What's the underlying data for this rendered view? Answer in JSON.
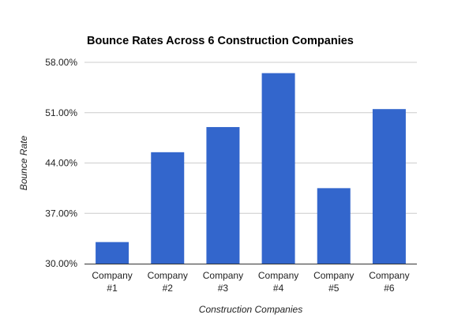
{
  "chart_data": {
    "type": "bar",
    "title": "Bounce Rates Across 6 Construction Companies",
    "xlabel": "Construction Companies",
    "ylabel": "Bounce Rate",
    "categories": [
      [
        "Company",
        "#1"
      ],
      [
        "Company",
        "#2"
      ],
      [
        "Company",
        "#3"
      ],
      [
        "Company",
        "#4"
      ],
      [
        "Company",
        "#5"
      ],
      [
        "Company",
        "#6"
      ]
    ],
    "values": [
      33.0,
      45.5,
      49.0,
      56.5,
      40.5,
      51.5
    ],
    "ylim": [
      30,
      58
    ],
    "yticks": [
      30,
      37,
      44,
      51,
      58
    ],
    "ytick_labels": [
      "30.00%",
      "37.00%",
      "44.00%",
      "51.00%",
      "58.00%"
    ],
    "grid": true,
    "legend": "none",
    "bar_color": "#3366cc"
  }
}
